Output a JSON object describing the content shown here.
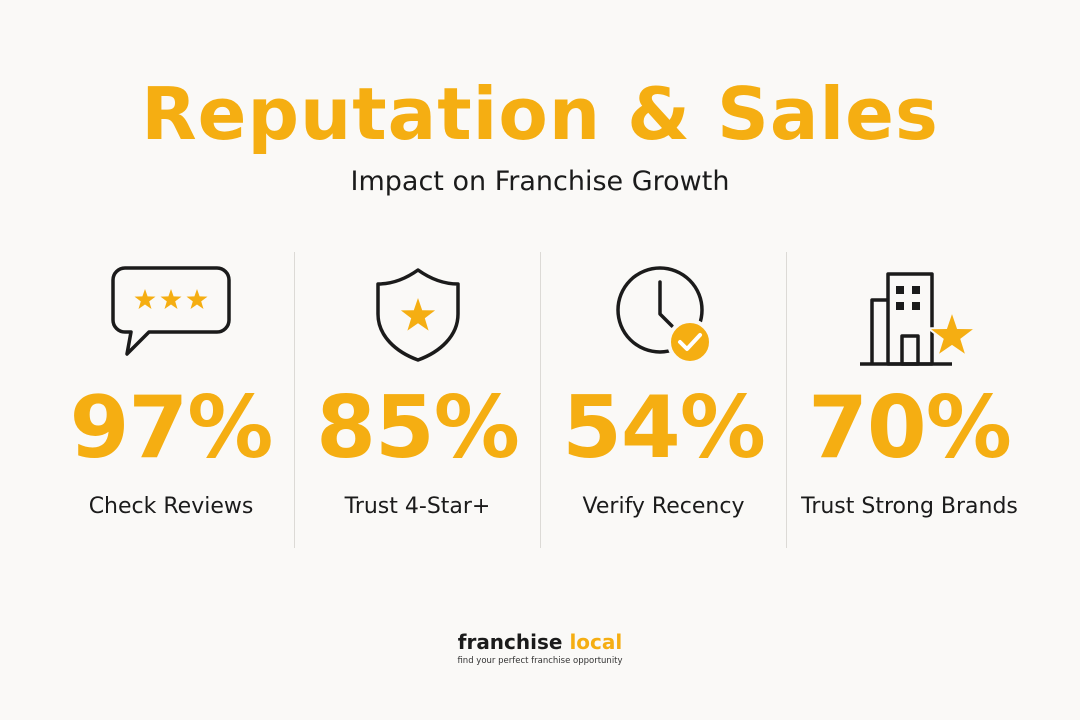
{
  "colors": {
    "accent": "#f5ae12",
    "text": "#1b1b1b",
    "divider": "#dcdad6",
    "background": "#faf9f7"
  },
  "header": {
    "title": "Reputation & Sales",
    "subtitle": "Impact on Franchise Growth"
  },
  "stats": [
    {
      "icon": "speech-bubble-stars-icon",
      "value": "97%",
      "label": "Check Reviews"
    },
    {
      "icon": "shield-star-icon",
      "value": "85%",
      "label": "Trust 4-Star+"
    },
    {
      "icon": "clock-check-icon",
      "value": "54%",
      "label": "Verify Recency"
    },
    {
      "icon": "building-star-icon",
      "value": "70%",
      "label": "Trust Strong Brands"
    }
  ],
  "logo": {
    "word_a": "franchise",
    "word_b": "local",
    "tagline": "find your perfect franchise opportunity"
  }
}
